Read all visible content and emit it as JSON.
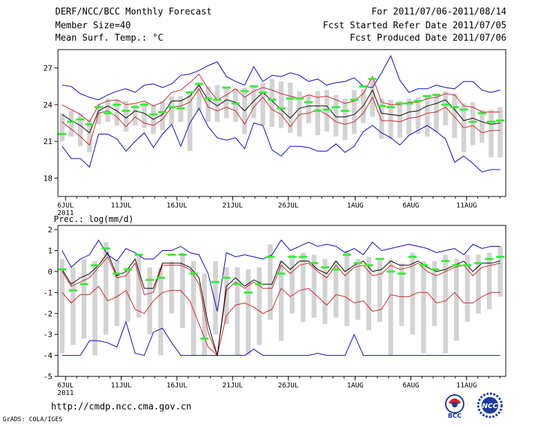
{
  "header": {
    "title": "DERF/NCC/BCC Monthly Forecast",
    "member_size": "Member Size=40",
    "variable": "Mean Surf. Temp.: °C",
    "period": "For 2011/07/06-2011/08/14",
    "start_date": "Fcst Started Refer Date 2011/07/05",
    "produced_date": "Fcst Produced Date 2011/07/06"
  },
  "footer": {
    "url": "http://cmdp.ncc.cma.gov.cn",
    "grads": "GrADS: COLA/IGES",
    "logo_left": "BCC",
    "logo_right": "NCC"
  },
  "colors": {
    "box": "#d3d3d3",
    "mean": "#000000",
    "spread": "#cc2222",
    "envelope": "#0000cc",
    "obs": "#33ee33"
  },
  "chart_data": [
    {
      "type": "line",
      "title": "Mean Surf. Temp.: °C",
      "ylim": [
        16.5,
        28.5
      ],
      "yticks": [
        18,
        21,
        24,
        27
      ],
      "x_tick_labels": [
        "6JUL",
        "11JUL",
        "16JUL",
        "21JUL",
        "26JUL",
        "1AUG",
        "6AUG",
        "11AUG"
      ],
      "x_tick_days": [
        0,
        5,
        10,
        15,
        20,
        26,
        31,
        36
      ],
      "year_label": "2011",
      "days": 40,
      "series": [
        {
          "name": "max",
          "values": [
            25.6,
            25.5,
            24.9,
            24.6,
            24.4,
            24.8,
            25.1,
            25.3,
            25.0,
            25.6,
            25.7,
            25.4,
            25.7,
            26.4,
            26.5,
            26.8,
            27.2,
            27.5,
            26.3,
            25.9,
            25.6,
            27.1,
            25.9,
            26.4,
            26.3,
            26.6,
            26.4,
            25.9,
            26.1,
            25.6,
            25.8,
            25.9,
            26.2,
            25.5,
            25.4,
            26.6,
            28.0,
            26.0,
            25.0,
            25.3,
            25.3,
            25.6,
            25.4,
            25.3,
            25.9,
            25.9,
            25.2,
            25.0,
            25.2
          ]
        },
        {
          "name": "upper",
          "values": [
            24.0,
            23.6,
            23.2,
            22.6,
            24.0,
            24.3,
            24.4,
            24.0,
            24.1,
            24.3,
            23.9,
            24.2,
            25.0,
            25.2,
            25.8,
            26.5,
            25.3,
            24.4,
            24.8,
            25.3,
            24.6,
            25.1,
            25.4,
            25.2,
            24.9,
            24.7,
            24.5,
            24.8,
            24.6,
            24.7,
            24.4,
            24.1,
            24.3,
            24.9,
            26.3,
            24.2,
            24.0,
            24.0,
            24.2,
            24.2,
            24.5,
            24.6,
            24.9,
            24.8,
            23.9,
            23.8,
            23.4,
            23.4,
            23.4
          ]
        },
        {
          "name": "mean",
          "values": [
            23.2,
            22.7,
            22.3,
            21.7,
            23.5,
            23.9,
            23.5,
            22.9,
            23.5,
            23.3,
            22.8,
            23.2,
            24.3,
            24.3,
            24.7,
            25.6,
            24.4,
            23.9,
            24.4,
            24.2,
            23.5,
            24.3,
            25.0,
            24.3,
            23.6,
            22.9,
            23.7,
            23.9,
            23.9,
            23.9,
            23.0,
            23.0,
            23.2,
            23.9,
            25.2,
            23.3,
            23.2,
            23.1,
            23.4,
            23.5,
            23.9,
            24.1,
            24.4,
            23.6,
            22.7,
            22.9,
            22.6,
            22.4,
            22.5
          ]
        },
        {
          "name": "lower",
          "values": [
            22.6,
            22.0,
            21.4,
            20.7,
            23.3,
            23.5,
            23.0,
            22.2,
            23.0,
            22.5,
            22.3,
            22.8,
            23.8,
            23.9,
            24.2,
            25.3,
            23.8,
            23.5,
            23.8,
            23.5,
            22.4,
            23.8,
            24.6,
            23.6,
            23.2,
            22.2,
            23.2,
            23.3,
            23.6,
            23.2,
            22.6,
            22.4,
            22.6,
            23.3,
            24.6,
            22.7,
            22.7,
            22.6,
            22.9,
            23.0,
            23.3,
            23.4,
            23.8,
            23.0,
            22.1,
            22.3,
            21.7,
            21.9,
            21.9
          ]
        },
        {
          "name": "min",
          "values": [
            20.6,
            19.6,
            19.6,
            18.9,
            21.6,
            21.6,
            21.2,
            20.2,
            21.0,
            21.7,
            20.5,
            21.6,
            22.4,
            20.6,
            22.5,
            23.7,
            22.2,
            21.3,
            21.1,
            21.3,
            20.4,
            22.5,
            22.3,
            20.3,
            19.8,
            20.6,
            20.6,
            20.5,
            20.2,
            20.2,
            20.8,
            20.1,
            20.6,
            21.8,
            22.3,
            21.7,
            21.3,
            20.7,
            21.5,
            21.9,
            22.3,
            21.8,
            21.2,
            19.3,
            19.8,
            19.2,
            18.5,
            18.7,
            18.7
          ]
        },
        {
          "name": "obs",
          "values": [
            21.6,
            22.6,
            22.8,
            22.4,
            23.8,
            23.3,
            24.0,
            23.5,
            23.8,
            24.0,
            23.2,
            23.4,
            23.8,
            23.7,
            25.0,
            25.7,
            24.5,
            24.4,
            25.4,
            24.1,
            25.1,
            25.5,
            25.0,
            24.4,
            23.7,
            24.5,
            24.5,
            24.2,
            23.5,
            23.6,
            23.8,
            23.5,
            24.4,
            25.5,
            26.1,
            23.9,
            23.8,
            24.1,
            24.1,
            24.3,
            24.7,
            24.8,
            24.0,
            23.8,
            23.6,
            22.6,
            23.3,
            22.6,
            22.7
          ]
        },
        {
          "name": "box_top",
          "values": [
            23.3,
            23.5,
            23.3,
            22.8,
            24.0,
            24.5,
            24.4,
            24.3,
            24.0,
            24.2,
            24.0,
            24.3,
            24.7,
            24.7,
            25.1,
            25.8,
            25.5,
            25.6,
            25.4,
            25.3,
            25.4,
            25.6,
            25.8,
            26.1,
            25.9,
            25.8,
            25.1,
            24.8,
            25.1,
            25.2,
            24.8,
            24.5,
            25.2,
            25.3,
            26.0,
            24.5,
            24.4,
            24.3,
            24.5,
            24.6,
            24.8,
            24.9,
            25.1,
            24.9,
            24.1,
            24.2,
            23.6,
            23.6,
            23.8
          ]
        },
        {
          "name": "box_bottom",
          "values": [
            21.0,
            21.4,
            20.6,
            20.1,
            22.4,
            22.6,
            22.3,
            21.8,
            22.3,
            22.1,
            21.6,
            21.9,
            22.4,
            22.6,
            20.2,
            23.5,
            22.6,
            22.6,
            22.9,
            22.6,
            21.6,
            22.9,
            22.3,
            22.2,
            22.1,
            21.7,
            21.4,
            22.5,
            21.5,
            21.8,
            21.4,
            21.1,
            21.6,
            22.5,
            23.0,
            21.2,
            21.2,
            21.3,
            21.5,
            21.6,
            21.4,
            21.8,
            22.3,
            21.3,
            20.1,
            20.7,
            20.9,
            19.7,
            19.7
          ]
        }
      ]
    },
    {
      "type": "line",
      "title": "Prec.: log(mm/d)",
      "ylim": [
        -5,
        2.2
      ],
      "yticks": [
        -5,
        -4,
        -3,
        -2,
        -1,
        0,
        1,
        2
      ],
      "x_tick_labels": [
        "6JUL",
        "11JUL",
        "16JUL",
        "21JUL",
        "26JUL",
        "1AUG",
        "6AUG",
        "11AUG"
      ],
      "x_tick_days": [
        0,
        5,
        10,
        15,
        20,
        26,
        31,
        36
      ],
      "year_label": "2011",
      "days": 40,
      "series": [
        {
          "name": "max",
          "values": [
            1.0,
            0.2,
            0.6,
            0.8,
            1.5,
            0.8,
            0.5,
            1.1,
            0.9,
            0.6,
            0.6,
            1.0,
            1.0,
            1.2,
            0.9,
            0.8,
            -0.1,
            -1.9,
            0.9,
            0.7,
            0.8,
            0.7,
            0.6,
            0.8,
            1.5,
            1.0,
            1.2,
            1.4,
            1.2,
            1.3,
            1.2,
            0.9,
            1.1,
            0.8,
            1.4,
            1.0,
            1.1,
            1.2,
            1.3,
            1.2,
            1.1,
            0.9,
            1.0,
            1.1,
            0.8,
            1.3,
            1.1,
            1.2,
            1.2
          ]
        },
        {
          "name": "mean",
          "values": [
            0.1,
            -0.6,
            -0.3,
            -0.1,
            0.3,
            0.9,
            -0.2,
            0.0,
            0.6,
            -0.8,
            -0.8,
            0.4,
            0.4,
            0.4,
            0.2,
            -0.3,
            -2.5,
            -4.0,
            -0.7,
            -0.3,
            -0.7,
            -0.4,
            -0.6,
            -0.6,
            0.5,
            0.1,
            0.5,
            0.5,
            0.1,
            -0.1,
            0.5,
            0.0,
            0.3,
            0.5,
            0.0,
            0.1,
            0.5,
            0.3,
            0.3,
            0.5,
            0.2,
            0.0,
            0.1,
            0.3,
            0.5,
            0.0,
            0.4,
            0.4,
            0.5
          ]
        },
        {
          "name": "spread_up",
          "values": [
            0.0,
            -0.7,
            -0.5,
            -0.3,
            0.2,
            0.7,
            -0.3,
            -0.2,
            0.4,
            -1.1,
            -1.0,
            0.3,
            0.3,
            0.3,
            0.1,
            -0.6,
            -2.9,
            -4.0,
            -0.9,
            -0.5,
            -0.8,
            -0.5,
            -0.8,
            -0.8,
            0.3,
            -0.1,
            0.3,
            0.4,
            0.0,
            -0.3,
            0.3,
            -0.2,
            0.2,
            0.3,
            -0.2,
            -0.1,
            0.3,
            0.1,
            0.2,
            0.4,
            0.0,
            -0.2,
            0.0,
            0.2,
            0.3,
            -0.2,
            0.2,
            0.3,
            0.4
          ]
        },
        {
          "name": "spread_low",
          "values": [
            -1.0,
            -1.5,
            -1.1,
            -1.1,
            -0.7,
            -1.4,
            -1.2,
            -0.9,
            -1.8,
            -2.0,
            -1.4,
            -1.0,
            -0.9,
            -0.9,
            -1.4,
            -2.5,
            -3.6,
            -4.0,
            -2.1,
            -1.6,
            -1.5,
            -1.7,
            -2.0,
            -1.8,
            -0.8,
            -1.2,
            -0.9,
            -0.8,
            -1.2,
            -1.6,
            -1.1,
            -1.2,
            -1.5,
            -1.4,
            -1.9,
            -1.8,
            -1.1,
            -1.2,
            -1.2,
            -1.0,
            -1.0,
            -1.5,
            -1.4,
            -1.0,
            -1.5,
            -1.5,
            -1.2,
            -1.0,
            -1.0
          ]
        },
        {
          "name": "min",
          "values": [
            -4.0,
            -4.0,
            -4.0,
            -3.3,
            -3.3,
            -3.4,
            -3.6,
            -2.4,
            -3.9,
            -4.0,
            -2.9,
            -2.7,
            -3.4,
            -4.0,
            -4.0,
            -4.0,
            -4.0,
            -4.0,
            -4.0,
            -4.0,
            -4.0,
            -3.7,
            -4.0,
            -4.0,
            -4.0,
            -4.0,
            -4.0,
            -4.0,
            -3.9,
            -4.0,
            -4.0,
            -4.0,
            -3.0,
            -4.0,
            -4.0,
            -4.0,
            -4.0,
            -4.0,
            -4.0,
            -4.0,
            -4.0,
            -4.0,
            -4.0,
            -4.0,
            -4.0,
            -4.0,
            -4.0,
            -4.0,
            -4.0
          ]
        },
        {
          "name": "obs",
          "values": [
            0.1,
            -0.9,
            -0.6,
            0.3,
            1.1,
            -0.1,
            0.1,
            0.8,
            -0.4,
            -0.3,
            0.8,
            0.8,
            -0.1,
            -3.2,
            -0.5,
            -0.3,
            -0.6,
            -1.0,
            -0.6,
            0.7,
            -0.1,
            0.7,
            0.7,
            0.4,
            0.2,
            0.1,
            0.8,
            0.4,
            0.3,
            0.6,
            0.0,
            -0.1,
            0.7,
            0.3,
            0.1,
            0.5,
            0.3,
            0.3,
            0.4,
            0.6,
            0.7
          ]
        },
        {
          "name": "box_top",
          "values": [
            0.6,
            0.2,
            0.6,
            0.5,
            1.4,
            0.5,
            0.2,
            0.8,
            0.2,
            0.2,
            0.5,
            0.9,
            0.5,
            -0.1,
            0.5,
            0.2,
            0.2,
            0.1,
            0.2,
            1.3,
            0.5,
            0.8,
            0.9,
            0.8,
            0.6,
            0.5,
            1.0,
            0.6,
            0.7,
            0.6,
            0.6,
            0.4,
            0.9,
            0.5,
            0.5,
            0.8,
            0.6,
            0.8,
            0.8,
            0.9,
            1.2
          ]
        },
        {
          "name": "box_bottom",
          "values": [
            -3.9,
            -3.5,
            -3.2,
            -4.0,
            -3.0,
            -2.6,
            -2.4,
            -2.2,
            -3.0,
            -4.0,
            -2.0,
            -2.7,
            -4.0,
            -4.0,
            -3.0,
            -2.5,
            -4.0,
            -4.0,
            -3.5,
            -2.3,
            -3.3,
            -2.0,
            -2.4,
            -2.2,
            -2.5,
            -2.2,
            -2.6,
            -2.3,
            -2.8,
            -2.4,
            -4.0,
            -2.6,
            -3.0,
            -3.9,
            -2.6,
            -3.9,
            -3.3,
            -2.4,
            -2.0,
            -1.8,
            -1.2
          ]
        }
      ]
    }
  ]
}
